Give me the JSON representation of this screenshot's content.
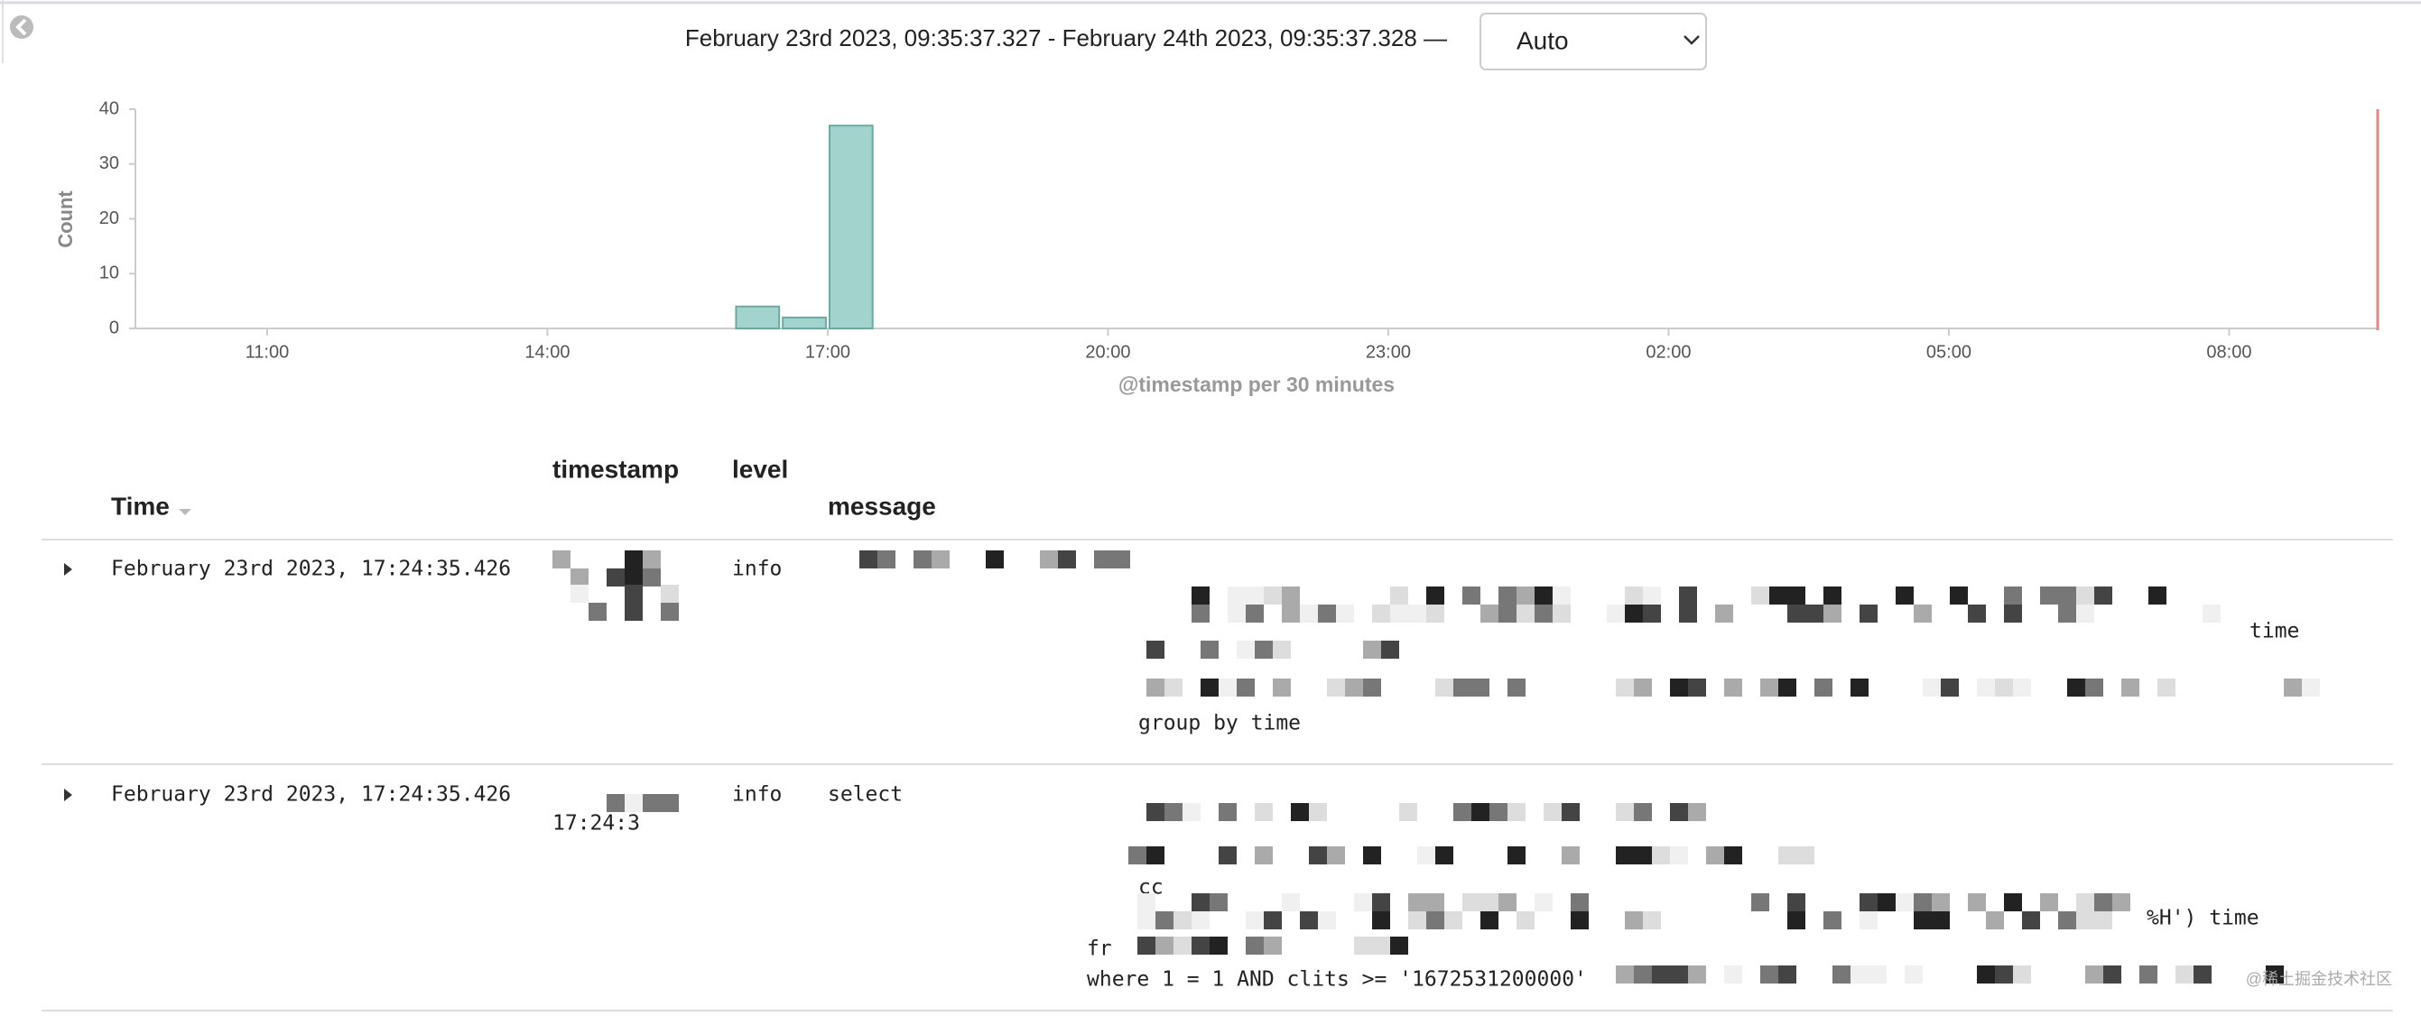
{
  "header": {
    "time_range": "February 23rd 2023, 09:35:37.327 - February 24th 2023, 09:35:37.328 —",
    "interval": "Auto"
  },
  "chart_data": {
    "type": "histogram",
    "y_label": "Count",
    "x_label": "@timestamp per 30 minutes",
    "bins": [
      16,
      16.5,
      17,
      17.5
    ],
    "values": [
      4,
      2,
      37
    ],
    "color": "#a3d3cd",
    "xlim": [
      9.59,
      33.59
    ],
    "xticks": [
      {
        "value": 11,
        "label": "11:00"
      },
      {
        "value": 14,
        "label": "14:00"
      },
      {
        "value": 17,
        "label": "17:00"
      },
      {
        "value": 20,
        "label": "20:00"
      },
      {
        "value": 23,
        "label": "23:00"
      },
      {
        "value": 26,
        "label": "02:00"
      },
      {
        "value": 29,
        "label": "05:00"
      },
      {
        "value": 32,
        "label": "08:00"
      }
    ],
    "ylim": [
      0,
      40
    ],
    "yticks": [
      0,
      10,
      20,
      30,
      40
    ]
  },
  "table": {
    "columns": [
      "Time",
      "timestamp",
      "level",
      "message"
    ],
    "rows": [
      {
        "time": "February 23rd 2023, 17:24:35.426",
        "level": "info",
        "message": [
          "time",
          "group by time"
        ]
      },
      {
        "time": "February 23rd 2023, 17:24:35.426",
        "timestamp": "17:24:3",
        "level": "info",
        "message": [
          "select",
          "cc",
          "%H') time",
          "fr",
          "where 1 = 1  AND clits >= '1672531200000'"
        ]
      }
    ]
  },
  "watermark": "@稀土掘金技术社区"
}
